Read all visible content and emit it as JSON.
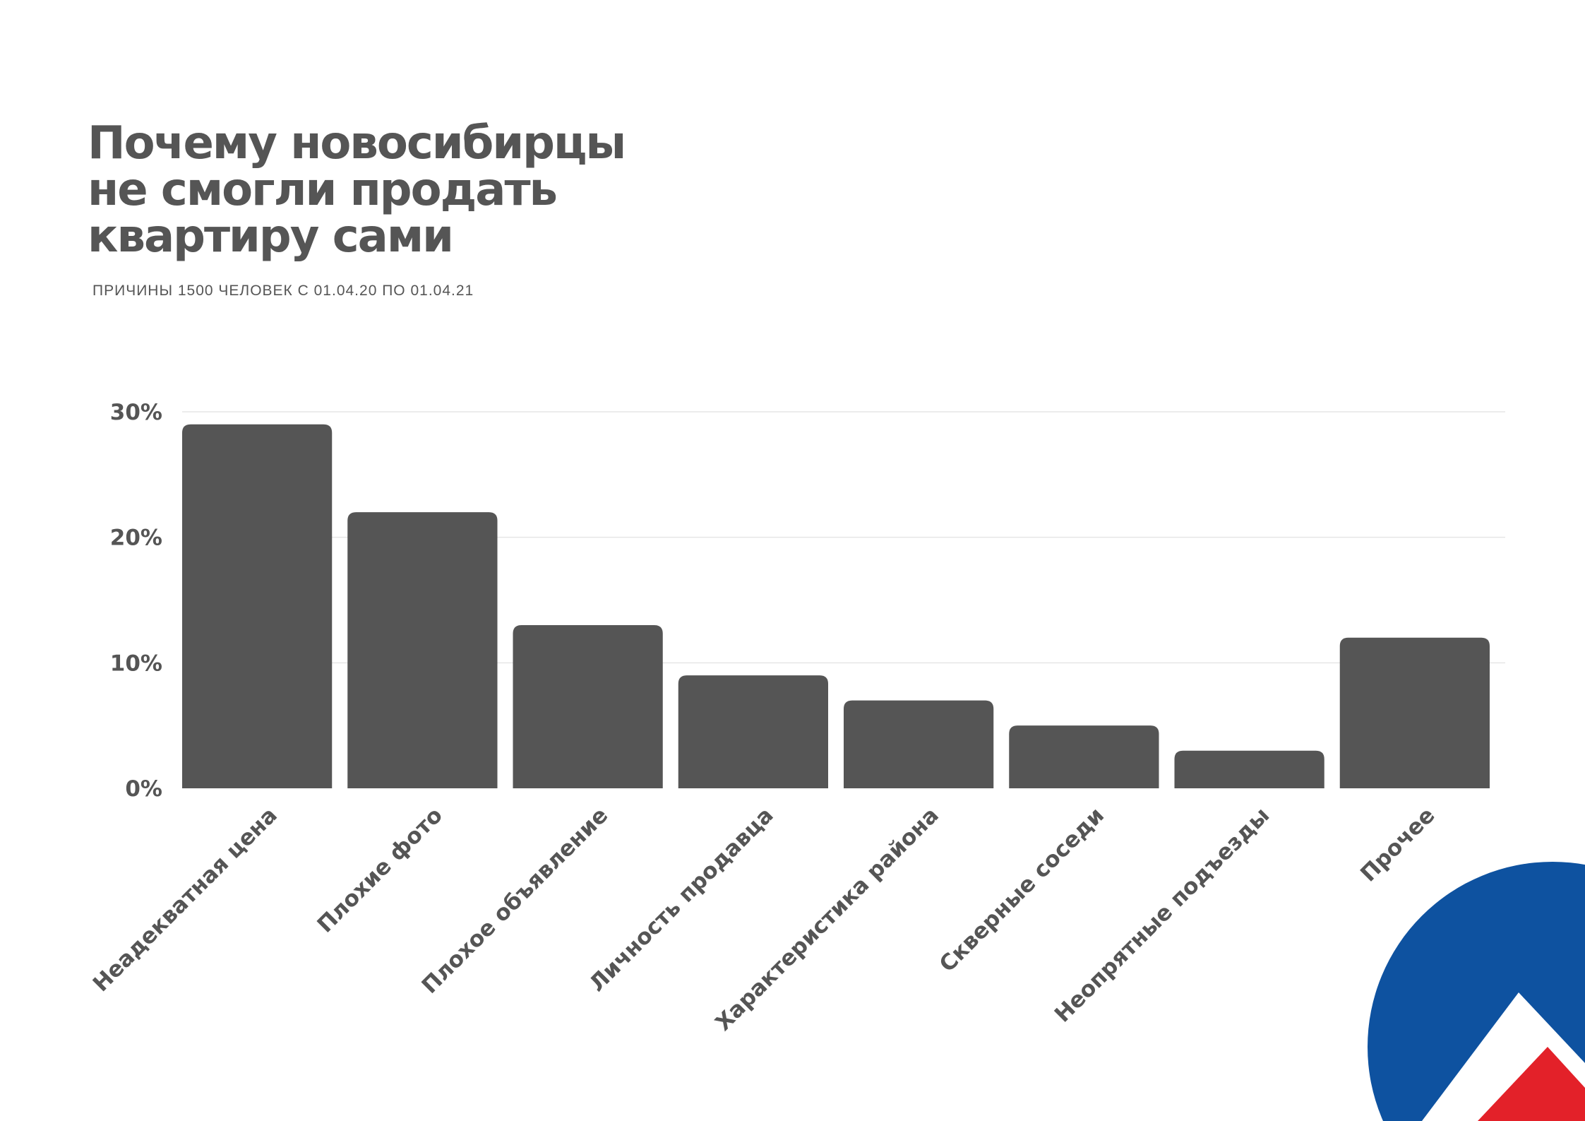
{
  "title_lines": [
    "Почему новосибирцы",
    "не смогли продать",
    "квартиру сами"
  ],
  "subtitle": "ПРИЧИНЫ 1500 ЧЕЛОВЕК С 01.04.20 ПО 01.04.21",
  "colors": {
    "bar": "#555555",
    "text": "#555555",
    "grid": "#e6e6e6",
    "logo_blue": "#0e52a0",
    "logo_red": "#e32129",
    "logo_white": "#ffffff"
  },
  "logo": {
    "icon": "house-roof-logo"
  },
  "chart_data": {
    "type": "bar",
    "title": "Почему новосибирцы не смогли продать квартиру сами",
    "subtitle": "ПРИЧИНЫ 1500 ЧЕЛОВЕК С 01.04.20 ПО 01.04.21",
    "categories": [
      "Неадекватная цена",
      "Плохие фото",
      "Плохое объявление",
      "Личность продавца",
      "Характеристика района",
      "Скверные соседи",
      "Неопрятные подъезды",
      "Прочее"
    ],
    "values": [
      29,
      22,
      13,
      9,
      7,
      5,
      3,
      12
    ],
    "ylim": [
      0,
      30
    ],
    "yticks": [
      0,
      10,
      20,
      30
    ],
    "ytick_labels": [
      "0%",
      "10%",
      "20%",
      "30%"
    ],
    "xlabel": "",
    "ylabel": "",
    "grid": true,
    "legend": "none"
  }
}
